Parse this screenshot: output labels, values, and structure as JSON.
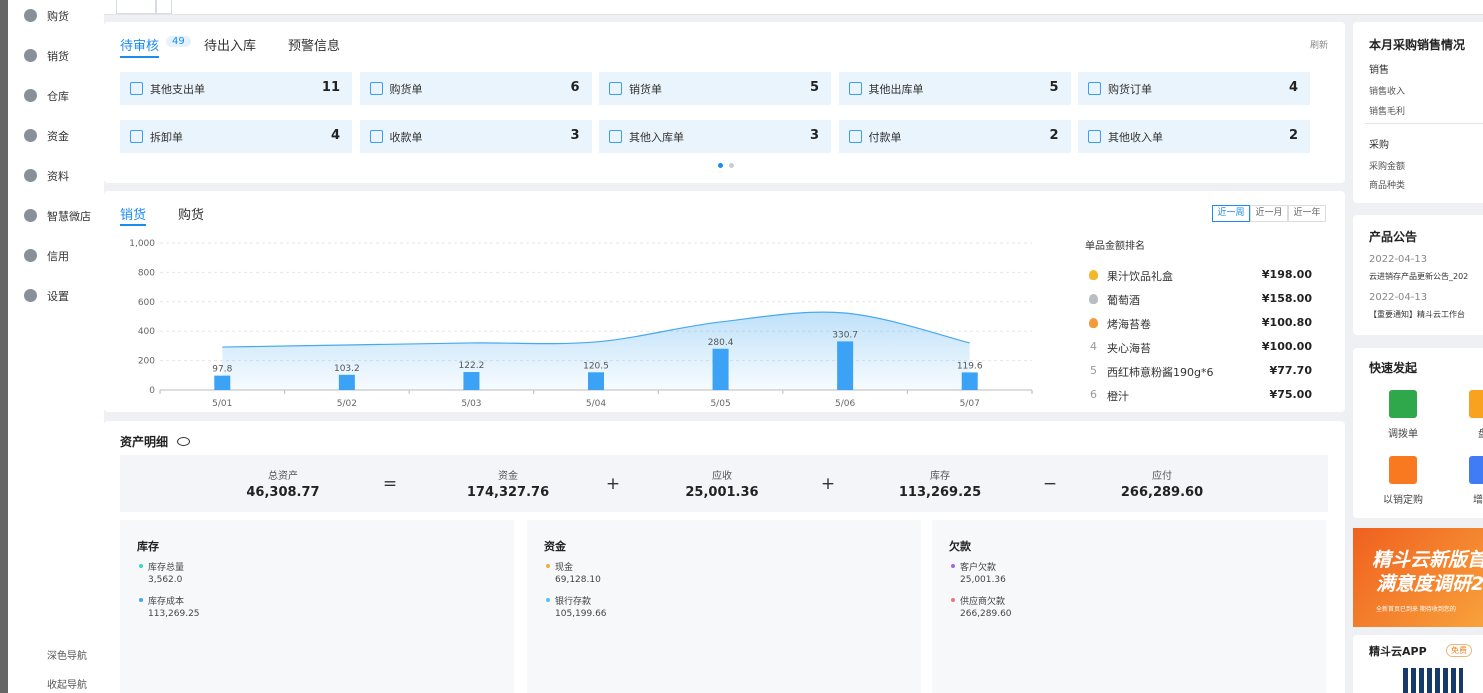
{
  "sidebar": {
    "items": [
      "购货",
      "销货",
      "仓库",
      "资金",
      "资料",
      "智慧微店",
      "信用",
      "设置"
    ],
    "footer": [
      "深色导航",
      "收起导航"
    ]
  },
  "pending": {
    "tabs": [
      "待审核",
      "待出入库",
      "预警信息"
    ],
    "badge": 49,
    "refresh": "刷新",
    "cards": [
      {
        "label": "其他支出单",
        "count": 11
      },
      {
        "label": "购货单",
        "count": 6
      },
      {
        "label": "销货单",
        "count": 5
      },
      {
        "label": "其他出库单",
        "count": 5
      },
      {
        "label": "购货订单",
        "count": 4
      },
      {
        "label": "拆卸单",
        "count": 4
      },
      {
        "label": "收款单",
        "count": 3
      },
      {
        "label": "其他入库单",
        "count": 3
      },
      {
        "label": "付款单",
        "count": 2
      },
      {
        "label": "其他收入单",
        "count": 2
      }
    ]
  },
  "trend": {
    "tabs": [
      "销货",
      "购货"
    ],
    "ranges": [
      "近一周",
      "近一月",
      "近一年"
    ],
    "chart_data": {
      "type": "bar",
      "categories": [
        "5/01",
        "5/02",
        "5/03",
        "5/04",
        "5/05",
        "5/06",
        "5/07"
      ],
      "series": [
        {
          "color": "#3ba2f6",
          "values": [
            97.8,
            103.2,
            122.2,
            120.5,
            280.4,
            330.7,
            119.6
          ]
        },
        {
          "type": "area",
          "color": "#47a9f0",
          "values": [
            292,
            306,
            320,
            327,
            463,
            524,
            320
          ]
        }
      ],
      "ylim": [
        0,
        1000
      ],
      "yticks": [
        0,
        200,
        400,
        600,
        800,
        {
          "value": 1000,
          "label": "1,000"
        }
      ],
      "grid": true
    },
    "ranking": {
      "title": "单品金额排名",
      "items": [
        {
          "name": "果汁饮品礼盒",
          "amount": "¥198.00"
        },
        {
          "name": "葡萄酒",
          "amount": "¥158.00"
        },
        {
          "name": "烤海苔卷",
          "amount": "¥100.80"
        },
        {
          "rank": 4,
          "name": "夹心海苔",
          "amount": "¥100.00"
        },
        {
          "rank": 5,
          "name": "西红柿意粉酱190g*6",
          "amount": "¥77.70"
        },
        {
          "rank": 6,
          "name": "橙汁",
          "amount": "¥75.00"
        }
      ]
    }
  },
  "assets": {
    "title": "资产明细",
    "summary": [
      {
        "label": "总资产",
        "value": "46,308.77"
      },
      {
        "label": "资金",
        "value": "174,327.76"
      },
      {
        "label": "应收",
        "value": "25,001.36"
      },
      {
        "label": "库存",
        "value": "113,269.25"
      },
      {
        "label": "应付",
        "value": "266,289.60"
      }
    ],
    "operators": [
      "=",
      "+",
      "+",
      "−"
    ],
    "panels": [
      {
        "title": "库存",
        "items": [
          {
            "label": "库存总量",
            "value": 3562,
            "value_label": "3,562.0",
            "color": "#3fd3c6"
          },
          {
            "label": "库存成本",
            "value": 113269.25,
            "value_label": "113,269.25",
            "color": "#42a6f4"
          }
        ]
      },
      {
        "title": "资金",
        "items": [
          {
            "label": "现金",
            "value": 69128.1,
            "value_label": "69,128.10",
            "color": "#f7a941"
          },
          {
            "label": "银行存款",
            "value": 105199.66,
            "value_label": "105,199.66",
            "color": "#52c3f5"
          }
        ]
      },
      {
        "title": "欠款",
        "items": [
          {
            "label": "客户欠款",
            "value": 25001.36,
            "value_label": "25,001.36",
            "color": "#9d6ae2"
          },
          {
            "label": "供应商欠款",
            "value": 266289.6,
            "value_label": "266,289.60",
            "color": "#f2717f"
          }
        ]
      }
    ]
  },
  "right": {
    "monthly": {
      "title": "本月采购销售情况",
      "sales": {
        "heading": "销售",
        "rows": [
          "销售收入",
          "销售毛利"
        ]
      },
      "purchase": {
        "heading": "采购",
        "rows": [
          "采购金额",
          "商品种类"
        ]
      }
    },
    "notices": {
      "title": "产品公告",
      "items": [
        {
          "date": "2022-04-13",
          "text": "云进销存产品更新公告_202"
        },
        {
          "date": "2022-04-13",
          "text": "【重要通知】精斗云工作台"
        }
      ]
    },
    "quick": {
      "title": "快速发起",
      "items": [
        "调拨单",
        "盘",
        "以销定购",
        "增值"
      ]
    },
    "banner": {
      "lines": [
        "精斗云新版首",
        "满意度调研2"
      ],
      "note": "全新首页已到来  期待收到您的"
    },
    "app": {
      "title": "精斗云APP",
      "badge": "免费"
    }
  }
}
